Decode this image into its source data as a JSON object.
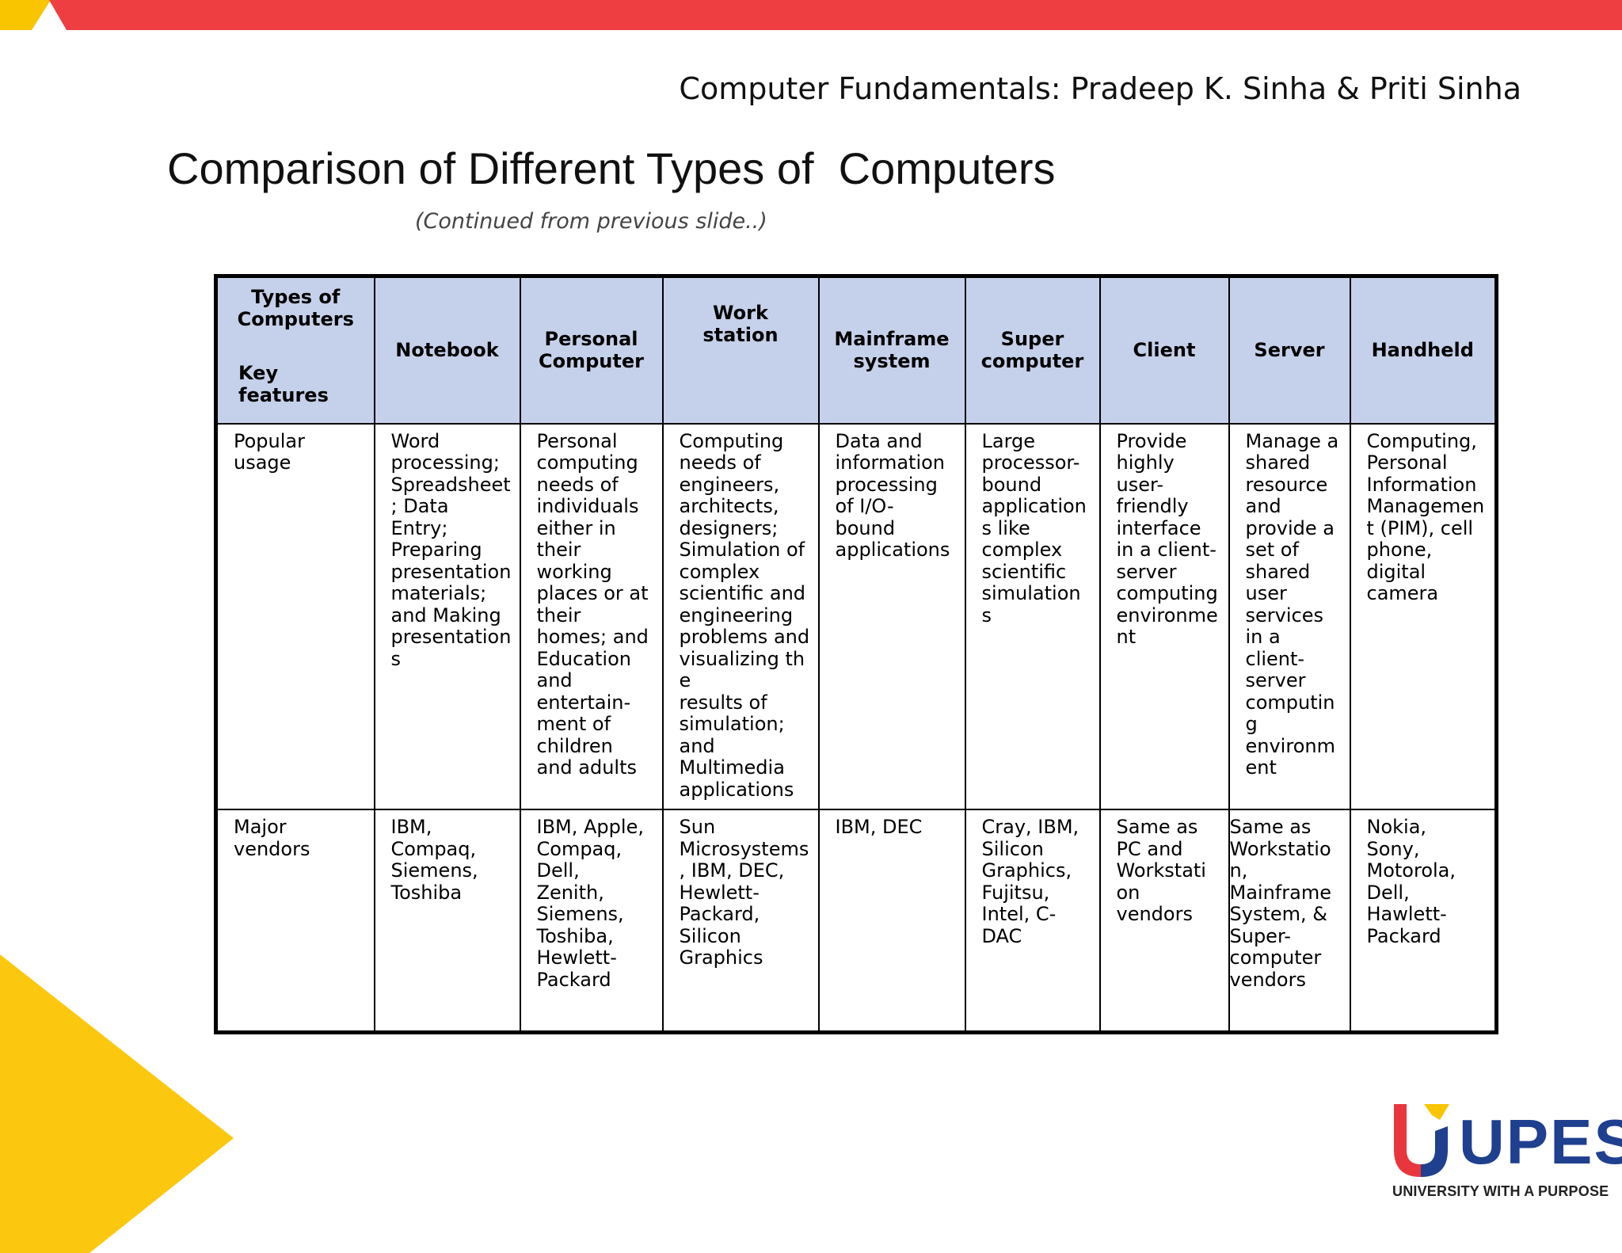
{
  "header": {
    "book_credit": "Computer Fundamentals: Pradeep K. Sinha & Priti Sinha",
    "title": "Comparison of Different Types of  Computers",
    "continued_note": "(Continued from previous slide..)"
  },
  "table": {
    "corner": {
      "types": "Types of\nComputers",
      "key_features": "Key\nfeatures"
    },
    "columns": [
      "Notebook",
      "Personal\nComputer",
      "Work\nstation",
      "Mainframe\nsystem",
      "Super\ncomputer",
      "Client",
      "Server",
      "Handheld"
    ],
    "rows": [
      {
        "label": "Popular\nusage",
        "cells": [
          "Word\nprocessing;\nSpreadsheet\n; Data\nEntry;\nPreparing\npresentation\nmaterials;\nand Making\npresentation\ns",
          "Personal\ncomputing\nneeds of\nindividuals\neither in\ntheir\nworking\nplaces or at\ntheir\nhomes; and\nEducation\nand\nentertain-\nment of\nchildren\nand adults",
          "Computing\nneeds of\nengineers,\narchitects,\ndesigners;\nSimulation of\ncomplex\nscientific and\nengineering\nproblems and\nvisualizing the\nresults of\nsimulation;\nand\nMultimedia\napplications",
          "Data and\ninformation\nprocessing\nof I/O-\nbound\napplications",
          "Large\nprocessor-\nbound\napplication\ns like\ncomplex\nscientific\nsimulation\ns",
          "Provide\nhighly\nuser-\nfriendly\ninterface\nin a client-\nserver\ncomputing\nenvironme\nnt",
          "Manage a\nshared\nresource\nand\nprovide a\nset of\nshared\nuser\nservices\nin a\nclient-\nserver\ncomputin\ng\nenvironm\nent",
          "Computing,\nPersonal\nInformation\nManagemen\nt (PIM), cell\nphone,\ndigital\ncamera"
        ]
      },
      {
        "label": "Major\nvendors",
        "cells": [
          "IBM,\nCompaq,\nSiemens,\nToshiba",
          "IBM, Apple,\nCompaq,\nDell,\nZenith,\nSiemens,\nToshiba,\nHewlett-\nPackard",
          "Sun\nMicrosystems\n, IBM, DEC,\nHewlett-\nPackard,\nSilicon\nGraphics",
          "IBM, DEC",
          "Cray, IBM,\nSilicon\nGraphics,\nFujitsu,\nIntel, C-\nDAC",
          "Same as\nPC and\nWorkstati\non\nvendors",
          "Same as\nWorkstation,\nMainframe\nSystem, &\nSuper-\ncomputer\nvendors",
          "Nokia,\nSony,\nMotorola,\nDell,\nHawlett-\nPackard"
        ]
      }
    ]
  },
  "logo": {
    "name": "UPES",
    "tagline": "UNIVERSITY WITH A PURPOSE",
    "colors": {
      "red": "#e8363c",
      "yellow": "#f9c400",
      "blue": "#1f3f8f"
    }
  }
}
